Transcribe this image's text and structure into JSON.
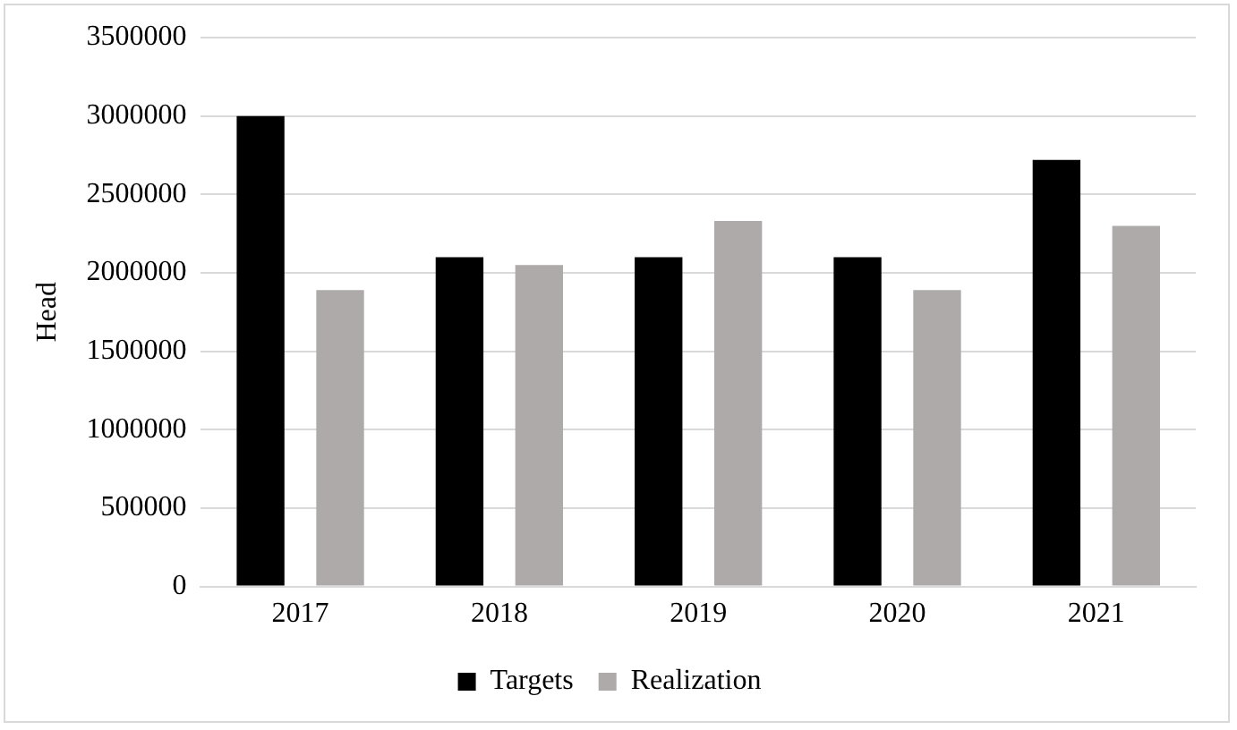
{
  "chart_data": {
    "type": "bar",
    "ylabel": "Head",
    "categories": [
      "2017",
      "2018",
      "2019",
      "2020",
      "2021"
    ],
    "series": [
      {
        "name": "Targets",
        "color": "#000000",
        "values": [
          3000000,
          2100000,
          2100000,
          2100000,
          2720000
        ]
      },
      {
        "name": "Realization",
        "color": "#aeaaaa",
        "values": [
          1890000,
          2050000,
          2330000,
          1890000,
          2300000
        ]
      }
    ],
    "ylim": [
      0,
      3500000
    ],
    "yticks": [
      0,
      500000,
      1000000,
      1500000,
      2000000,
      2500000,
      3000000,
      3500000
    ],
    "grid": "y",
    "legend": "bottom"
  }
}
